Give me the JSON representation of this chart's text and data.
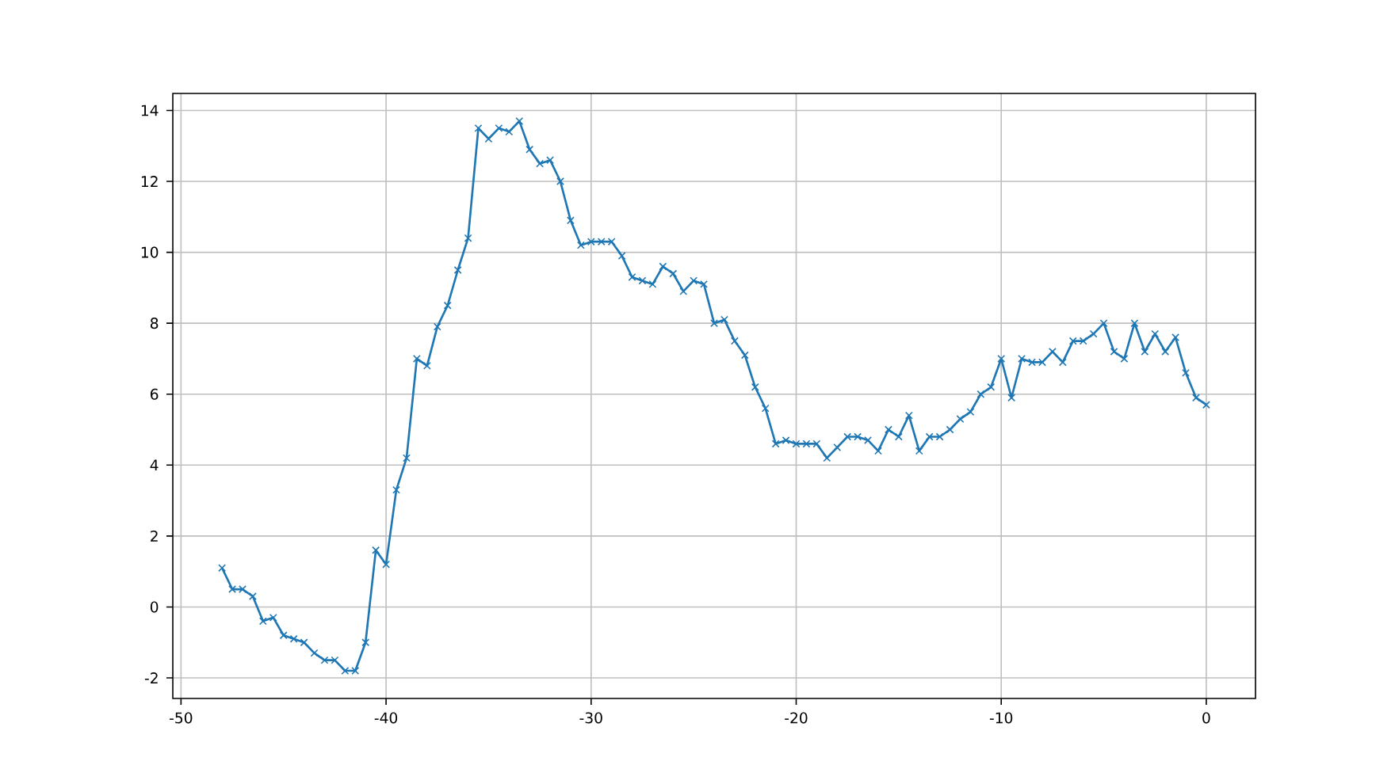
{
  "chart_data": {
    "type": "line",
    "x": [
      -48,
      -47.5,
      -47,
      -46.5,
      -46,
      -45.5,
      -45,
      -44.5,
      -44,
      -43.5,
      -43,
      -42.5,
      -42,
      -41.5,
      -41,
      -40.5,
      -40,
      -39.5,
      -39,
      -38.5,
      -38,
      -37.5,
      -37,
      -36.5,
      -36,
      -35.5,
      -35,
      -34.5,
      -34,
      -33.5,
      -33,
      -32.5,
      -32,
      -31.5,
      -31,
      -30.5,
      -30,
      -29.5,
      -29,
      -28.5,
      -28,
      -27.5,
      -27,
      -26.5,
      -26,
      -25.5,
      -25,
      -24.5,
      -24,
      -23.5,
      -23,
      -22.5,
      -22,
      -21.5,
      -21,
      -20.5,
      -20,
      -19.5,
      -19,
      -18.5,
      -18,
      -17.5,
      -17,
      -16.5,
      -16,
      -15.5,
      -15,
      -14.5,
      -14,
      -13.5,
      -13,
      -12.5,
      -12,
      -11.5,
      -11,
      -10.5,
      -10,
      -9.5,
      -9,
      -8.5,
      -8,
      -7.5,
      -7,
      -6.5,
      -6,
      -5.5,
      -5,
      -4.5,
      -4,
      -3.5,
      -3,
      -2.5,
      -2,
      -1.5,
      -1,
      -0.5,
      0
    ],
    "series": [
      {
        "color": "#1f77b4",
        "values": [
          1.1,
          0.5,
          0.5,
          0.3,
          -0.4,
          -0.3,
          -0.8,
          -0.9,
          -1.0,
          -1.3,
          -1.5,
          -1.5,
          -1.8,
          -1.8,
          -1.0,
          1.6,
          1.2,
          3.3,
          4.2,
          7.0,
          6.8,
          7.9,
          8.5,
          9.5,
          10.4,
          13.5,
          13.2,
          13.5,
          13.4,
          13.7,
          12.9,
          12.5,
          12.6,
          12.0,
          10.9,
          10.2,
          10.3,
          10.3,
          10.3,
          9.9,
          9.3,
          9.2,
          9.1,
          9.6,
          9.4,
          8.9,
          9.2,
          9.1,
          8.0,
          8.1,
          7.5,
          7.1,
          6.2,
          5.6,
          4.6,
          4.7,
          4.6,
          4.6,
          4.6,
          4.2,
          4.5,
          4.8,
          4.8,
          4.7,
          4.4,
          5.0,
          4.8,
          5.4,
          4.4,
          4.8,
          4.8,
          5.0,
          5.3,
          5.5,
          6.0,
          6.2,
          7.0,
          5.9,
          7.0,
          6.9,
          6.9,
          7.2,
          6.9,
          7.5,
          7.5,
          7.7,
          8.0,
          7.2,
          7.0,
          8.0,
          7.2,
          7.7,
          7.2,
          7.6,
          6.6,
          5.9,
          5.7
        ]
      }
    ],
    "xlim": [
      -50.4,
      2.4
    ],
    "ylim": [
      -2.58,
      14.48
    ],
    "xticks": [
      -50,
      -40,
      -30,
      -20,
      -10,
      0
    ],
    "yticks": [
      -2,
      0,
      2,
      4,
      6,
      8,
      10,
      12,
      14
    ],
    "grid": true,
    "marker": "cross",
    "line_style": "solid"
  }
}
